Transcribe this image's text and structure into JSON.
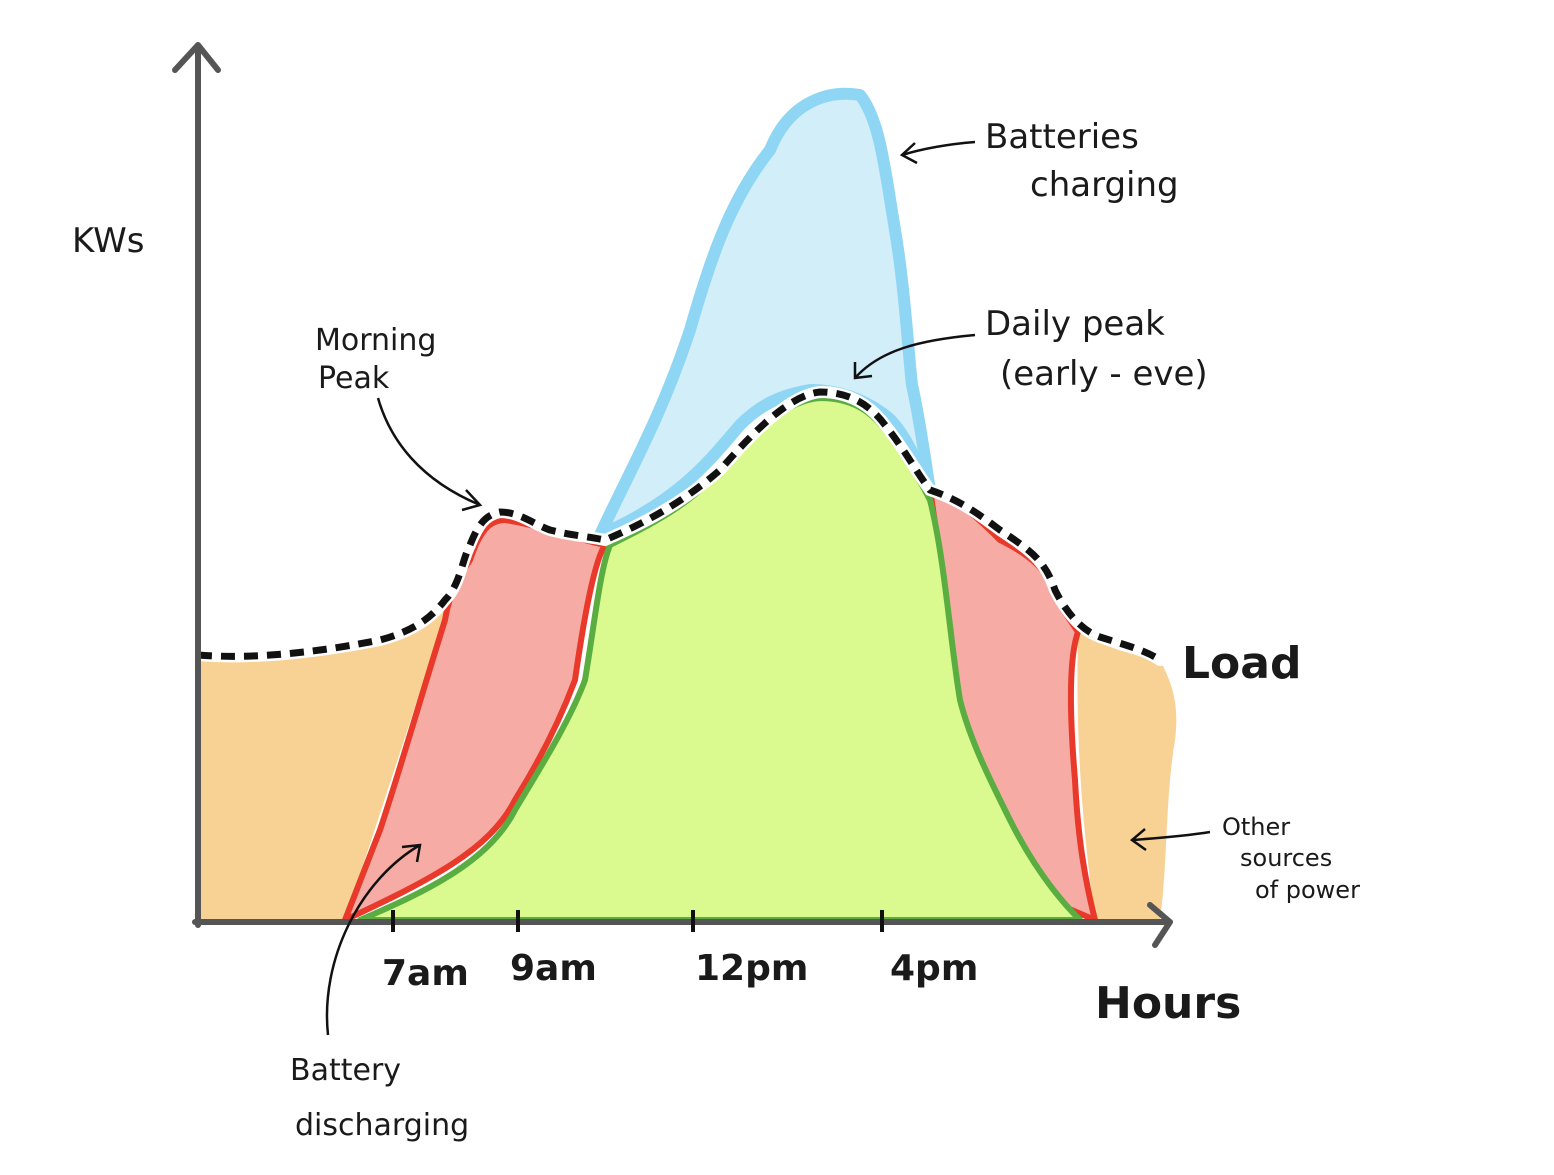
{
  "diagram": {
    "y_axis_label": "KWs",
    "x_axis_label": "Hours",
    "load_label": "Load",
    "ticks": [
      "7am",
      "9am",
      "12pm",
      "4pm"
    ],
    "annotations": {
      "batteries_charging": [
        "Batteries",
        "charging"
      ],
      "daily_peak": [
        "Daily peak",
        "(early - eve)"
      ],
      "morning_peak": [
        "Morning",
        "Peak"
      ],
      "battery_discharging": [
        "Battery",
        "discharging"
      ],
      "other_sources": [
        "Other",
        "sources",
        "of power"
      ]
    },
    "colors": {
      "other_sources_fill": "#f8d294",
      "battery_discharge_fill": "#f6aca5",
      "battery_discharge_stroke": "#e8392b",
      "solar_fill": "#daf98f",
      "solar_stroke": "#5aad40",
      "battery_charge_fill": "#d1eef9",
      "battery_charge_stroke": "#8fd6f5",
      "load_line": "#111111",
      "axis": "#555555"
    }
  }
}
